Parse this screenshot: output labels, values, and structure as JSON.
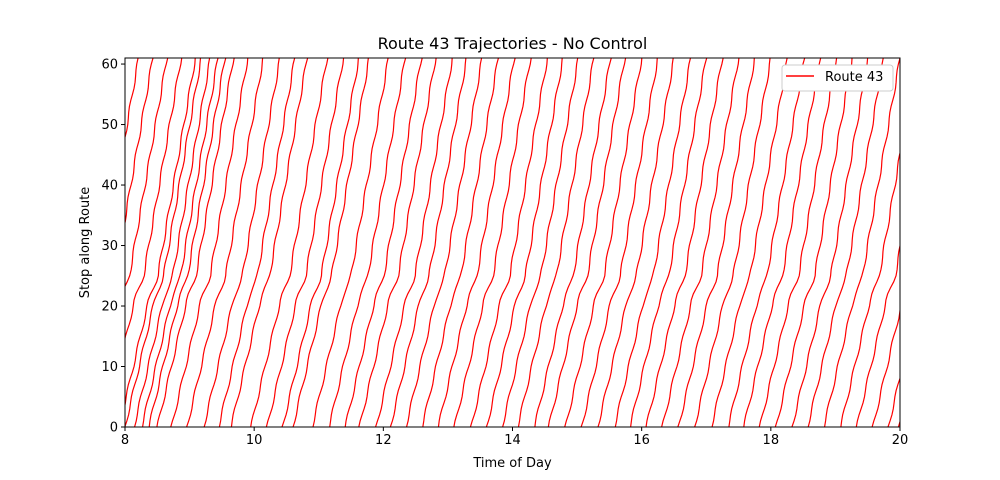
{
  "chart_data": {
    "type": "line",
    "title": "Route 43 Trajectories - No Control",
    "xlabel": "Time of Day",
    "ylabel": "Stop along Route",
    "xlim": [
      8,
      20
    ],
    "ylim": [
      0,
      61
    ],
    "xticks": [
      8,
      10,
      12,
      14,
      16,
      18,
      20
    ],
    "yticks": [
      0,
      10,
      20,
      30,
      40,
      50,
      60
    ],
    "grid": false,
    "legend": {
      "position": "top-right",
      "entries": [
        {
          "label": "Route 43",
          "color": "#ff0000"
        }
      ]
    },
    "series": [
      {
        "name": "Route 43",
        "color": "#ff0000",
        "trip_duration_hours": 1.18,
        "dwell_profile": [
          [
            0,
            0
          ],
          [
            21.5,
            0.47
          ],
          [
            24.5,
            0.59
          ],
          [
            61,
            1.18
          ]
        ],
        "trip_start_times": [
          6.82,
          7.03,
          7.25,
          7.47,
          7.69,
          7.91,
          8.0,
          8.14,
          8.26,
          8.37,
          8.5,
          8.72,
          8.96,
          9.22,
          9.45,
          9.64,
          9.95,
          10.2,
          10.44,
          10.6,
          10.9,
          11.16,
          11.41,
          11.63,
          11.89,
          12.11,
          12.35,
          12.6,
          12.85,
          13.1,
          13.36,
          13.6,
          13.84,
          14.08,
          14.34,
          14.56,
          14.82,
          15.07,
          15.32,
          15.58,
          15.82,
          16.07,
          16.32,
          16.57,
          16.82,
          17.08,
          17.34,
          17.58,
          17.83,
          18.08,
          18.33,
          18.57,
          18.82,
          19.08,
          19.33,
          19.58,
          19.82,
          19.97
        ]
      }
    ]
  }
}
